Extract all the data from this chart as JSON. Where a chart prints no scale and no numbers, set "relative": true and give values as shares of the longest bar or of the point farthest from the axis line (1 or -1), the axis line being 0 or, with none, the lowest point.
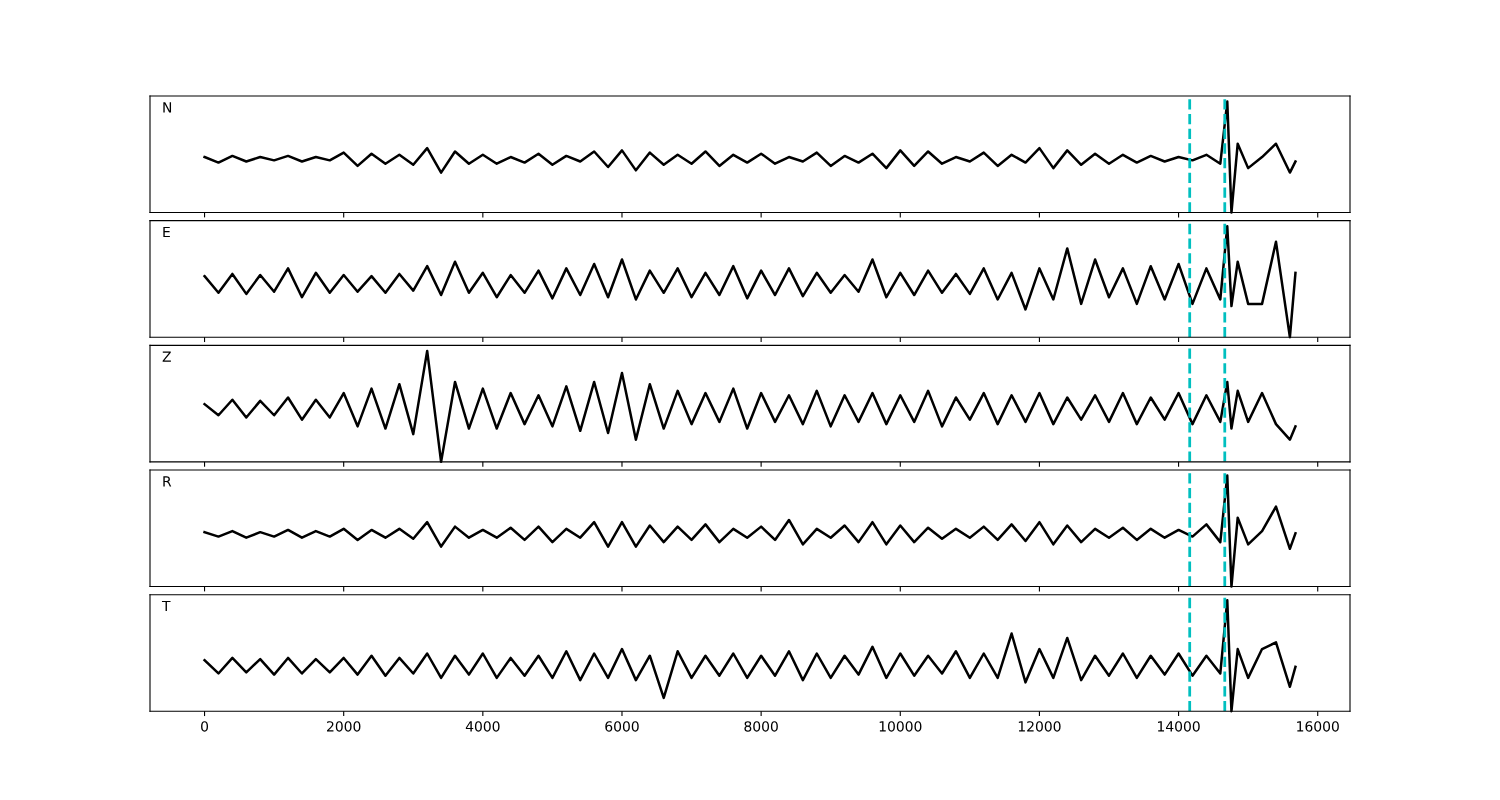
{
  "chart_data": [
    {
      "type": "line",
      "relative": true,
      "tick_labels": false,
      "annotations": [
        "N"
      ],
      "xlim": [
        -784,
        16464
      ],
      "xticks": [
        0,
        2000,
        4000,
        6000,
        8000,
        10000,
        12000,
        14000,
        16000
      ],
      "x": [
        0,
        200,
        400,
        600,
        800,
        1000,
        1200,
        1400,
        1600,
        1800,
        2000,
        2200,
        2400,
        2600,
        2800,
        3000,
        3200,
        3400,
        3600,
        3800,
        4000,
        4200,
        4400,
        4600,
        4800,
        5000,
        5200,
        5400,
        5600,
        5800,
        6000,
        6200,
        6400,
        6600,
        6800,
        7000,
        7200,
        7400,
        7600,
        7800,
        8000,
        8200,
        8400,
        8600,
        8800,
        9000,
        9200,
        9400,
        9600,
        9800,
        10000,
        10200,
        10400,
        10600,
        10800,
        11000,
        11200,
        11400,
        11600,
        11800,
        12000,
        12200,
        12400,
        12600,
        12800,
        13000,
        13200,
        13400,
        13600,
        13800,
        14000,
        14200,
        14400,
        14600,
        14700,
        14760,
        14850,
        15000,
        15200,
        15400,
        15600,
        15680
      ],
      "series": [
        {
          "color": "#000000",
          "values": [
            0.5,
            0.45,
            0.51,
            0.46,
            0.5,
            0.47,
            0.51,
            0.46,
            0.5,
            0.47,
            0.54,
            0.42,
            0.53,
            0.44,
            0.52,
            0.43,
            0.58,
            0.36,
            0.55,
            0.44,
            0.52,
            0.44,
            0.5,
            0.45,
            0.53,
            0.43,
            0.51,
            0.46,
            0.55,
            0.41,
            0.56,
            0.38,
            0.54,
            0.43,
            0.52,
            0.44,
            0.55,
            0.42,
            0.52,
            0.45,
            0.53,
            0.44,
            0.5,
            0.46,
            0.54,
            0.42,
            0.51,
            0.45,
            0.53,
            0.4,
            0.56,
            0.42,
            0.55,
            0.44,
            0.5,
            0.46,
            0.54,
            0.42,
            0.52,
            0.45,
            0.58,
            0.4,
            0.56,
            0.43,
            0.53,
            0.44,
            0.52,
            0.45,
            0.51,
            0.46,
            0.5,
            0.47,
            0.52,
            0.44,
            1.0,
            0.0,
            0.62,
            0.4,
            0.5,
            0.62,
            0.36,
            0.46
          ]
        }
      ],
      "ref_lines": [
        {
          "axis": "x",
          "value": 14160,
          "color": "#00bfbf",
          "line_style": "dashed"
        },
        {
          "axis": "x",
          "value": 14664,
          "color": "#00bfbf",
          "line_style": "dashed"
        }
      ]
    },
    {
      "type": "line",
      "relative": true,
      "tick_labels": false,
      "annotations": [
        "E"
      ],
      "xlim": [
        -784,
        16464
      ],
      "xticks": [
        0,
        2000,
        4000,
        6000,
        8000,
        10000,
        12000,
        14000,
        16000
      ],
      "x": [
        0,
        200,
        400,
        600,
        800,
        1000,
        1200,
        1400,
        1600,
        1800,
        2000,
        2200,
        2400,
        2600,
        2800,
        3000,
        3200,
        3400,
        3600,
        3800,
        4000,
        4200,
        4400,
        4600,
        4800,
        5000,
        5200,
        5400,
        5600,
        5800,
        6000,
        6200,
        6400,
        6600,
        6800,
        7000,
        7200,
        7400,
        7600,
        7800,
        8000,
        8200,
        8400,
        8600,
        8800,
        9000,
        9200,
        9400,
        9600,
        9800,
        10000,
        10200,
        10400,
        10600,
        10800,
        11000,
        11200,
        11400,
        11600,
        11800,
        12000,
        12200,
        12400,
        12600,
        12800,
        13000,
        13200,
        13400,
        13600,
        13800,
        14000,
        14200,
        14400,
        14600,
        14700,
        14760,
        14850,
        15000,
        15200,
        15400,
        15600,
        15680
      ],
      "series": [
        {
          "color": "#000000",
          "values": [
            0.55,
            0.4,
            0.57,
            0.39,
            0.56,
            0.41,
            0.62,
            0.36,
            0.58,
            0.4,
            0.56,
            0.41,
            0.55,
            0.4,
            0.57,
            0.42,
            0.64,
            0.38,
            0.68,
            0.4,
            0.58,
            0.36,
            0.56,
            0.4,
            0.6,
            0.35,
            0.62,
            0.38,
            0.66,
            0.36,
            0.7,
            0.34,
            0.6,
            0.4,
            0.62,
            0.36,
            0.58,
            0.38,
            0.64,
            0.35,
            0.6,
            0.38,
            0.62,
            0.37,
            0.58,
            0.4,
            0.56,
            0.41,
            0.7,
            0.36,
            0.58,
            0.38,
            0.6,
            0.4,
            0.57,
            0.39,
            0.62,
            0.34,
            0.58,
            0.25,
            0.62,
            0.34,
            0.8,
            0.3,
            0.7,
            0.36,
            0.62,
            0.3,
            0.64,
            0.34,
            0.66,
            0.3,
            0.62,
            0.34,
            1.0,
            0.28,
            0.68,
            0.3,
            0.3,
            0.86,
            0.0,
            0.58
          ]
        }
      ],
      "ref_lines": [
        {
          "axis": "x",
          "value": 14160,
          "color": "#00bfbf",
          "line_style": "dashed"
        },
        {
          "axis": "x",
          "value": 14664,
          "color": "#00bfbf",
          "line_style": "dashed"
        }
      ]
    },
    {
      "type": "line",
      "relative": true,
      "tick_labels": false,
      "annotations": [
        "Z"
      ],
      "xlim": [
        -784,
        16464
      ],
      "xticks": [
        0,
        2000,
        4000,
        6000,
        8000,
        10000,
        12000,
        14000,
        16000
      ],
      "x": [
        0,
        200,
        400,
        600,
        800,
        1000,
        1200,
        1400,
        1600,
        1800,
        2000,
        2200,
        2400,
        2600,
        2800,
        3000,
        3200,
        3400,
        3600,
        3800,
        4000,
        4200,
        4400,
        4600,
        4800,
        5000,
        5200,
        5400,
        5600,
        5800,
        6000,
        6200,
        6400,
        6600,
        6800,
        7000,
        7200,
        7400,
        7600,
        7800,
        8000,
        8200,
        8400,
        8600,
        8800,
        9000,
        9200,
        9400,
        9600,
        9800,
        10000,
        10200,
        10400,
        10600,
        10800,
        11000,
        11200,
        11400,
        11600,
        11800,
        12000,
        12200,
        12400,
        12600,
        12800,
        13000,
        13200,
        13400,
        13600,
        13800,
        14000,
        14200,
        14400,
        14600,
        14700,
        14760,
        14850,
        15000,
        15200,
        15400,
        15600,
        15680
      ],
      "series": [
        {
          "color": "#000000",
          "values": [
            0.52,
            0.42,
            0.56,
            0.4,
            0.55,
            0.42,
            0.58,
            0.38,
            0.56,
            0.4,
            0.62,
            0.32,
            0.66,
            0.3,
            0.7,
            0.25,
            1.0,
            0.0,
            0.72,
            0.3,
            0.66,
            0.3,
            0.62,
            0.34,
            0.6,
            0.32,
            0.68,
            0.28,
            0.72,
            0.26,
            0.8,
            0.2,
            0.7,
            0.3,
            0.64,
            0.34,
            0.62,
            0.36,
            0.66,
            0.3,
            0.62,
            0.36,
            0.6,
            0.34,
            0.64,
            0.32,
            0.6,
            0.36,
            0.62,
            0.34,
            0.6,
            0.36,
            0.64,
            0.32,
            0.58,
            0.38,
            0.62,
            0.34,
            0.6,
            0.36,
            0.62,
            0.34,
            0.58,
            0.38,
            0.6,
            0.36,
            0.62,
            0.34,
            0.58,
            0.38,
            0.62,
            0.34,
            0.6,
            0.36,
            0.72,
            0.3,
            0.64,
            0.36,
            0.62,
            0.34,
            0.2,
            0.32
          ]
        }
      ],
      "ref_lines": [
        {
          "axis": "x",
          "value": 14160,
          "color": "#00bfbf",
          "line_style": "dashed"
        },
        {
          "axis": "x",
          "value": 14664,
          "color": "#00bfbf",
          "line_style": "dashed"
        }
      ]
    },
    {
      "type": "line",
      "relative": true,
      "tick_labels": false,
      "annotations": [
        "R"
      ],
      "xlim": [
        -784,
        16464
      ],
      "xticks": [
        0,
        2000,
        4000,
        6000,
        8000,
        10000,
        12000,
        14000,
        16000
      ],
      "x": [
        0,
        200,
        400,
        600,
        800,
        1000,
        1200,
        1400,
        1600,
        1800,
        2000,
        2200,
        2400,
        2600,
        2800,
        3000,
        3200,
        3400,
        3600,
        3800,
        4000,
        4200,
        4400,
        4600,
        4800,
        5000,
        5200,
        5400,
        5600,
        5800,
        6000,
        6200,
        6400,
        6600,
        6800,
        7000,
        7200,
        7400,
        7600,
        7800,
        8000,
        8200,
        8400,
        8600,
        8800,
        9000,
        9200,
        9400,
        9600,
        9800,
        10000,
        10200,
        10400,
        10600,
        10800,
        11000,
        11200,
        11400,
        11600,
        11800,
        12000,
        12200,
        12400,
        12600,
        12800,
        13000,
        13200,
        13400,
        13600,
        13800,
        14000,
        14200,
        14400,
        14600,
        14700,
        14760,
        14850,
        15000,
        15200,
        15400,
        15600,
        15680
      ],
      "series": [
        {
          "color": "#000000",
          "values": [
            0.49,
            0.45,
            0.5,
            0.44,
            0.49,
            0.45,
            0.51,
            0.44,
            0.5,
            0.45,
            0.52,
            0.42,
            0.51,
            0.44,
            0.52,
            0.43,
            0.58,
            0.36,
            0.54,
            0.44,
            0.51,
            0.44,
            0.53,
            0.42,
            0.54,
            0.4,
            0.52,
            0.44,
            0.58,
            0.36,
            0.58,
            0.36,
            0.55,
            0.4,
            0.54,
            0.42,
            0.56,
            0.4,
            0.52,
            0.44,
            0.54,
            0.42,
            0.6,
            0.38,
            0.52,
            0.44,
            0.55,
            0.4,
            0.58,
            0.38,
            0.55,
            0.4,
            0.53,
            0.43,
            0.52,
            0.44,
            0.54,
            0.42,
            0.56,
            0.41,
            0.58,
            0.38,
            0.55,
            0.4,
            0.52,
            0.44,
            0.53,
            0.42,
            0.52,
            0.44,
            0.51,
            0.45,
            0.56,
            0.4,
            1.0,
            0.0,
            0.62,
            0.38,
            0.5,
            0.72,
            0.34,
            0.48
          ]
        }
      ],
      "ref_lines": [
        {
          "axis": "x",
          "value": 14160,
          "color": "#00bfbf",
          "line_style": "dashed"
        },
        {
          "axis": "x",
          "value": 14664,
          "color": "#00bfbf",
          "line_style": "dashed"
        }
      ]
    },
    {
      "type": "line",
      "relative": true,
      "tick_labels": "x",
      "annotations": [
        "T"
      ],
      "xlim": [
        -784,
        16464
      ],
      "xticks": [
        0,
        2000,
        4000,
        6000,
        8000,
        10000,
        12000,
        14000,
        16000
      ],
      "x": [
        0,
        200,
        400,
        600,
        800,
        1000,
        1200,
        1400,
        1600,
        1800,
        2000,
        2200,
        2400,
        2600,
        2800,
        3000,
        3200,
        3400,
        3600,
        3800,
        4000,
        4200,
        4400,
        4600,
        4800,
        5000,
        5200,
        5400,
        5600,
        5800,
        6000,
        6200,
        6400,
        6600,
        6800,
        7000,
        7200,
        7400,
        7600,
        7800,
        8000,
        8200,
        8400,
        8600,
        8800,
        9000,
        9200,
        9400,
        9600,
        9800,
        10000,
        10200,
        10400,
        10600,
        10800,
        11000,
        11200,
        11400,
        11600,
        11800,
        12000,
        12200,
        12400,
        12600,
        12800,
        13000,
        13200,
        13400,
        13600,
        13800,
        14000,
        14200,
        14400,
        14600,
        14700,
        14760,
        14850,
        15000,
        15200,
        15400,
        15600,
        15680
      ],
      "series": [
        {
          "color": "#000000",
          "values": [
            0.46,
            0.34,
            0.48,
            0.35,
            0.47,
            0.33,
            0.48,
            0.34,
            0.47,
            0.35,
            0.48,
            0.33,
            0.5,
            0.32,
            0.48,
            0.34,
            0.52,
            0.3,
            0.5,
            0.33,
            0.52,
            0.3,
            0.48,
            0.32,
            0.5,
            0.3,
            0.54,
            0.28,
            0.52,
            0.3,
            0.56,
            0.28,
            0.5,
            0.12,
            0.54,
            0.3,
            0.5,
            0.32,
            0.52,
            0.3,
            0.5,
            0.32,
            0.54,
            0.28,
            0.52,
            0.3,
            0.5,
            0.33,
            0.58,
            0.3,
            0.52,
            0.32,
            0.5,
            0.34,
            0.54,
            0.3,
            0.52,
            0.3,
            0.7,
            0.26,
            0.56,
            0.3,
            0.66,
            0.28,
            0.5,
            0.32,
            0.52,
            0.3,
            0.5,
            0.33,
            0.52,
            0.32,
            0.5,
            0.34,
            1.0,
            0.0,
            0.56,
            0.3,
            0.56,
            0.62,
            0.22,
            0.4
          ]
        }
      ],
      "ref_lines": [
        {
          "axis": "x",
          "value": 14160,
          "color": "#00bfbf",
          "line_style": "dashed"
        },
        {
          "axis": "x",
          "value": 14664,
          "color": "#00bfbf",
          "line_style": "dashed"
        }
      ]
    }
  ]
}
